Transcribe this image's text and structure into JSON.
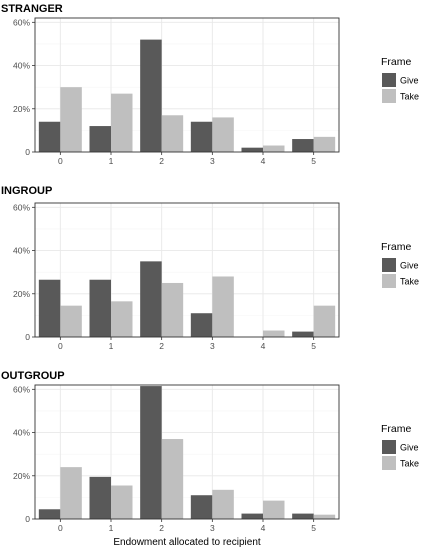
{
  "chart_data": [
    {
      "type": "bar",
      "title": "STRANGER",
      "categories": [
        "0",
        "1",
        "2",
        "3",
        "4",
        "5"
      ],
      "series": [
        {
          "name": "Give",
          "values": [
            14,
            12,
            52,
            14,
            2,
            6
          ],
          "color": "#595959"
        },
        {
          "name": "Take",
          "values": [
            30,
            27,
            17,
            16,
            3,
            7
          ],
          "color": "#bfbfbf"
        }
      ],
      "yticks": [
        "0",
        "20%",
        "40%",
        "60%"
      ],
      "ylim": [
        0,
        62
      ],
      "xlabel": "",
      "ylabel": "",
      "grid": true,
      "legend": {
        "title": "Frame",
        "position": "right"
      }
    },
    {
      "type": "bar",
      "title": "INGROUP",
      "categories": [
        "0",
        "1",
        "2",
        "3",
        "4",
        "5"
      ],
      "series": [
        {
          "name": "Give",
          "values": [
            26.5,
            26.5,
            35,
            11,
            0,
            2.5
          ],
          "color": "#595959"
        },
        {
          "name": "Take",
          "values": [
            14.5,
            16.5,
            25,
            28,
            3,
            14.5
          ],
          "color": "#bfbfbf"
        }
      ],
      "yticks": [
        "0",
        "20%",
        "40%",
        "60%"
      ],
      "ylim": [
        0,
        62
      ],
      "xlabel": "",
      "ylabel": "",
      "grid": true,
      "legend": {
        "title": "Frame",
        "position": "right"
      }
    },
    {
      "type": "bar",
      "title": "OUTGROUP",
      "categories": [
        "0",
        "1",
        "2",
        "3",
        "4",
        "5"
      ],
      "series": [
        {
          "name": "Give",
          "values": [
            4.5,
            19.5,
            61.5,
            11,
            2.5,
            2.5
          ],
          "color": "#595959"
        },
        {
          "name": "Take",
          "values": [
            24,
            15.5,
            37,
            13.5,
            8.5,
            2
          ],
          "color": "#bfbfbf"
        }
      ],
      "yticks": [
        "0",
        "20%",
        "40%",
        "60%"
      ],
      "ylim": [
        0,
        62
      ],
      "xlabel": "Endowment allocated to recipient",
      "ylabel": "",
      "grid": true,
      "legend": {
        "title": "Frame",
        "position": "right"
      }
    }
  ]
}
